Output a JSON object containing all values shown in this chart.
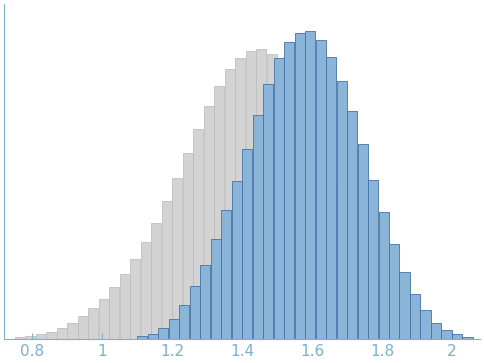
{
  "xlim": [
    0.72,
    2.08
  ],
  "xticks": [
    0.8,
    1.0,
    1.2,
    1.4,
    1.6,
    1.8,
    2.0
  ],
  "bin_width": 0.03,
  "gray_color": "#d3d3d3",
  "gray_edge": "#b8b8b8",
  "blue_color": "#8ab4d8",
  "blue_edge": "#4472a8",
  "tick_color": "#7ab0d0",
  "axis_color": "#7ab0d0",
  "tick_fontsize": 11,
  "background_color": "#ffffff",
  "gray_bins": [
    0.75,
    0.78,
    0.81,
    0.84,
    0.87,
    0.9,
    0.93,
    0.96,
    0.99,
    1.02,
    1.05,
    1.08,
    1.11,
    1.14,
    1.17,
    1.2,
    1.23,
    1.26,
    1.29,
    1.32,
    1.35,
    1.38,
    1.41,
    1.44,
    1.47,
    1.5,
    1.53,
    1.56,
    1.59,
    1.62,
    1.65,
    1.68,
    1.71,
    1.74,
    1.77,
    1.8,
    1.83,
    1.86,
    1.89,
    1.92,
    1.95,
    1.98
  ],
  "gray_heights": [
    2,
    3,
    5,
    8,
    12,
    18,
    25,
    34,
    44,
    57,
    72,
    88,
    107,
    128,
    152,
    178,
    205,
    232,
    258,
    280,
    298,
    310,
    318,
    320,
    315,
    305,
    288,
    265,
    238,
    208,
    175,
    143,
    113,
    86,
    63,
    44,
    29,
    18,
    10,
    5,
    2,
    1
  ],
  "blue_bins": [
    1.1,
    1.13,
    1.16,
    1.19,
    1.22,
    1.25,
    1.28,
    1.31,
    1.34,
    1.37,
    1.4,
    1.43,
    1.46,
    1.49,
    1.52,
    1.55,
    1.58,
    1.61,
    1.64,
    1.67,
    1.7,
    1.73,
    1.76,
    1.79,
    1.82,
    1.85,
    1.88,
    1.91,
    1.94,
    1.97,
    2.0,
    2.03
  ],
  "blue_heights": [
    3,
    6,
    12,
    22,
    38,
    58,
    82,
    110,
    142,
    175,
    210,
    248,
    282,
    310,
    328,
    338,
    340,
    330,
    312,
    285,
    252,
    215,
    176,
    140,
    105,
    74,
    50,
    32,
    18,
    10,
    5,
    2
  ]
}
